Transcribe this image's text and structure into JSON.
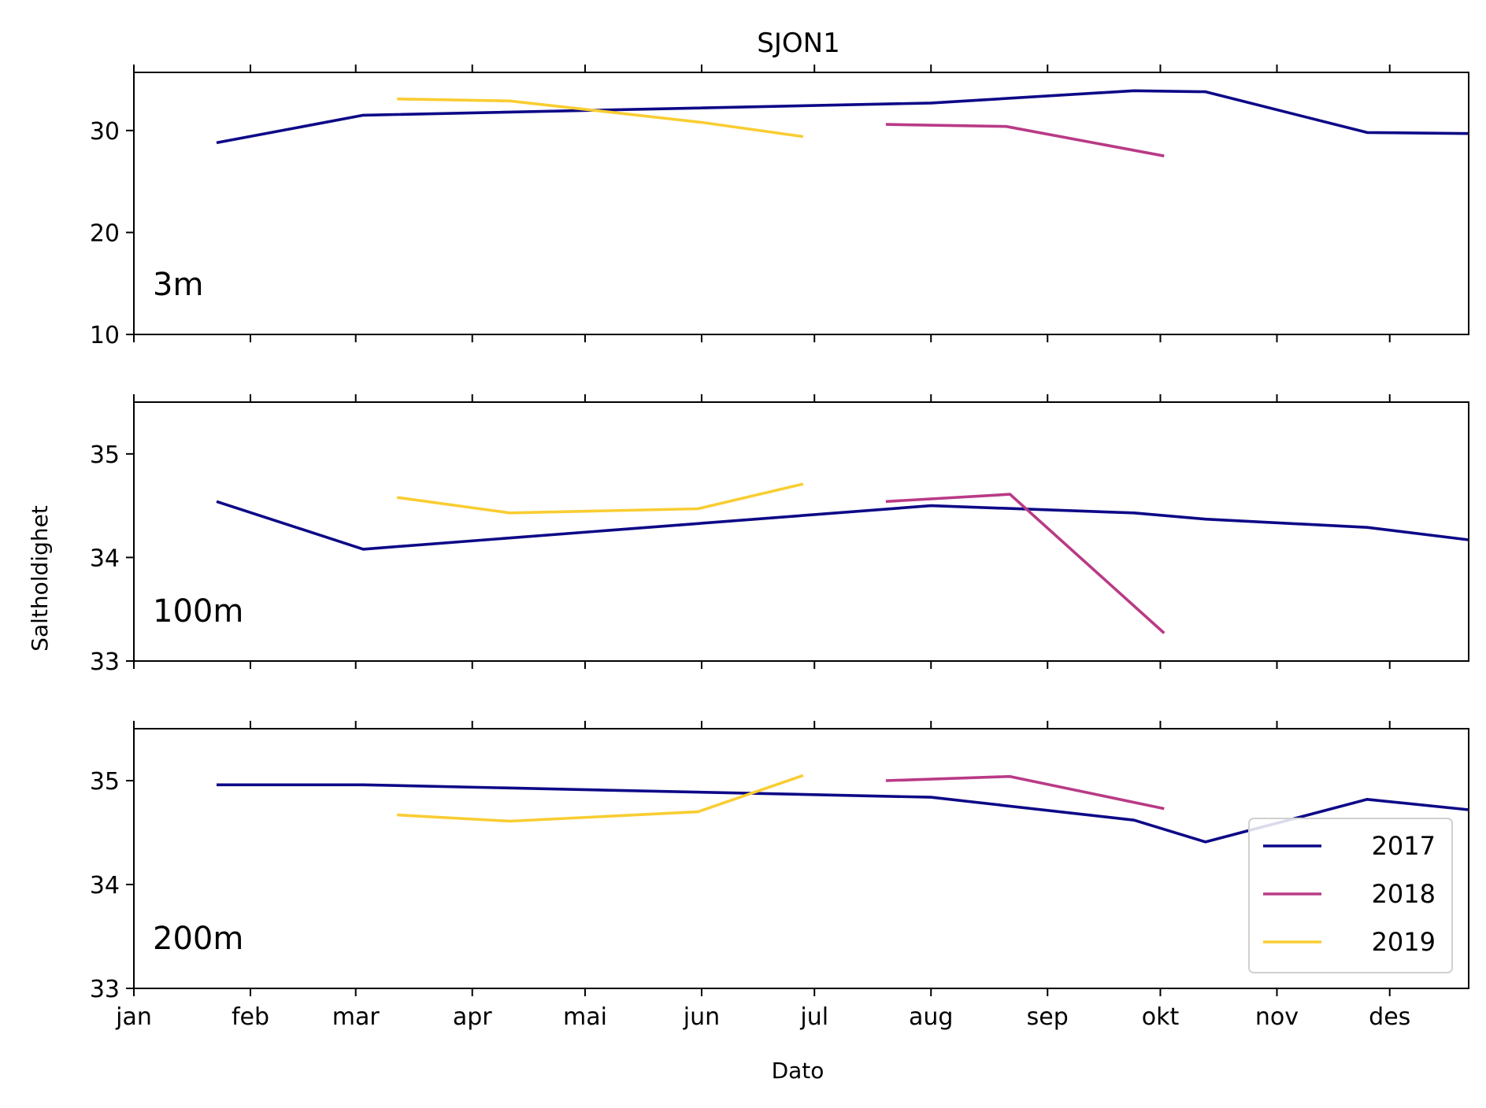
{
  "chart_data": {
    "type": "line",
    "title": "SJON1",
    "xlabel": "Dato",
    "ylabel": "Saltholdighet",
    "x_unit": "day_of_year",
    "x_ticks": [
      {
        "day": 1,
        "label": "jan"
      },
      {
        "day": 32,
        "label": "feb"
      },
      {
        "day": 60,
        "label": "mar"
      },
      {
        "day": 91,
        "label": "apr"
      },
      {
        "day": 121,
        "label": "mai"
      },
      {
        "day": 152,
        "label": "jun"
      },
      {
        "day": 182,
        "label": "jul"
      },
      {
        "day": 213,
        "label": "aug"
      },
      {
        "day": 244,
        "label": "sep"
      },
      {
        "day": 274,
        "label": "okt"
      },
      {
        "day": 305,
        "label": "nov"
      },
      {
        "day": 335,
        "label": "des"
      }
    ],
    "xlim": [
      1,
      356
    ],
    "legend": {
      "placement": "lower-right",
      "entries": [
        "2017",
        "2018",
        "2019"
      ]
    },
    "colors": {
      "2017": "#0d0887",
      "2018": "#b93a86",
      "2019": "#f9cd32"
    },
    "panels": [
      {
        "label": "3m",
        "ylim": [
          10,
          35.7
        ],
        "yticks": [
          10,
          20,
          30
        ],
        "series": [
          {
            "name": "2017",
            "x": [
              23,
              62,
              213,
              267,
              286,
              329,
              356
            ],
            "y": [
              28.8,
              31.5,
              32.7,
              33.9,
              33.8,
              29.8,
              29.7
            ]
          },
          {
            "name": "2018",
            "x": [
              201,
              233,
              275
            ],
            "y": [
              30.6,
              30.4,
              27.5
            ]
          },
          {
            "name": "2019",
            "x": [
              71,
              101,
              152,
              179
            ],
            "y": [
              33.1,
              32.9,
              30.8,
              29.4
            ]
          }
        ]
      },
      {
        "label": "100m",
        "ylim": [
          33,
          35.5
        ],
        "yticks": [
          33,
          34,
          35
        ],
        "series": [
          {
            "name": "2017",
            "x": [
              23,
              62,
              213,
              267,
              286,
              329,
              356
            ],
            "y": [
              34.54,
              34.08,
              34.5,
              34.43,
              34.37,
              34.29,
              34.17
            ]
          },
          {
            "name": "2018",
            "x": [
              201,
              234,
              275
            ],
            "y": [
              34.54,
              34.61,
              33.27
            ]
          },
          {
            "name": "2019",
            "x": [
              71,
              101,
              151,
              179
            ],
            "y": [
              34.58,
              34.43,
              34.47,
              34.71
            ]
          }
        ]
      },
      {
        "label": "200m",
        "ylim": [
          33,
          35.5
        ],
        "yticks": [
          33,
          34,
          35
        ],
        "series": [
          {
            "name": "2017",
            "x": [
              23,
              62,
              213,
              267,
              286,
              329,
              356
            ],
            "y": [
              34.96,
              34.96,
              34.84,
              34.62,
              34.41,
              34.82,
              34.72
            ]
          },
          {
            "name": "2018",
            "x": [
              201,
              234,
              275
            ],
            "y": [
              35.0,
              35.04,
              34.73
            ]
          },
          {
            "name": "2019",
            "x": [
              71,
              101,
              151,
              179
            ],
            "y": [
              34.67,
              34.61,
              34.7,
              35.05
            ]
          }
        ]
      }
    ]
  }
}
